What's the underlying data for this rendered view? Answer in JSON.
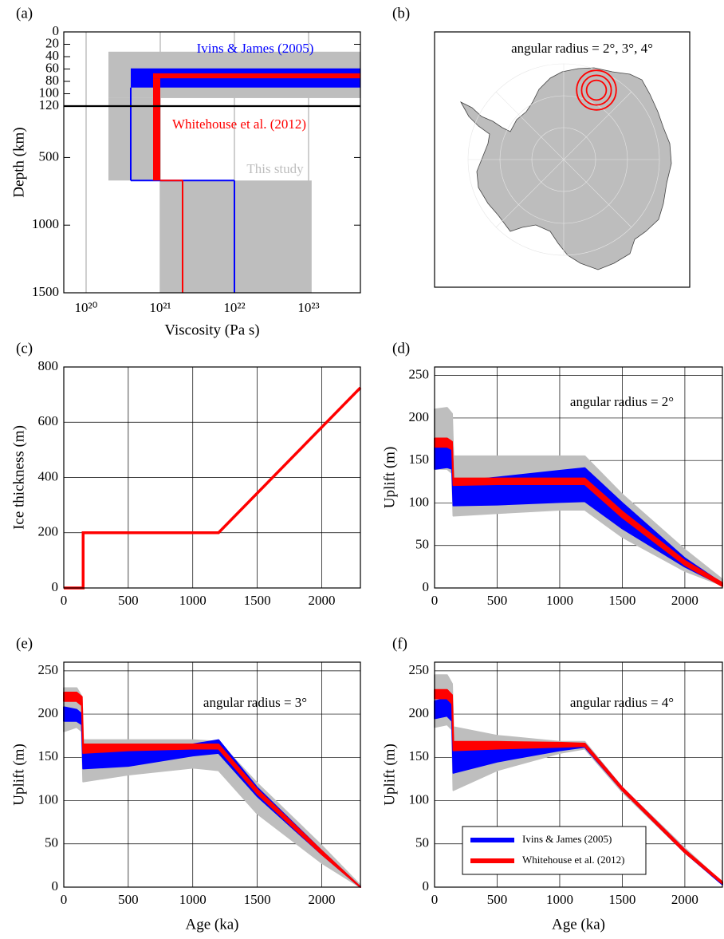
{
  "chart_data": [
    {
      "type": "profile",
      "label": "(a)",
      "xlabel": "Viscosity (Pa s)",
      "ylabel": "Depth (km)",
      "xscale": "log",
      "xlim": [
        5e+19,
        5e+23
      ],
      "xticks": [
        {
          "value": 1e+20,
          "label": "10²⁰"
        },
        {
          "value": 1e+21,
          "label": "10²¹"
        },
        {
          "value": 1e+22,
          "label": "10²²"
        },
        {
          "value": 1e+23,
          "label": "10²³"
        }
      ],
      "ylim": [
        0,
        1500
      ],
      "ybreak": 120,
      "yticks": [
        0,
        20,
        40,
        60,
        80,
        100,
        120,
        500,
        1000,
        1500
      ],
      "grid": "x",
      "transition_depth": 670,
      "series": [
        {
          "name": "This study",
          "color": "#bebebe",
          "lithosphere": [
            32,
            107
          ],
          "upper_mantle": [
            2e+20,
            1e+21
          ],
          "lower_mantle": [
            1e+21,
            1.1e+23
          ]
        },
        {
          "name": "Ivins & James (2005)",
          "color": "#0000ff",
          "lithosphere": [
            59,
            90
          ],
          "upper_mantle": 4e+20,
          "lower_mantle": 1e+22
        },
        {
          "name": "Whitehouse et al. (2012)",
          "color": "#ff0000",
          "lithosphere": [
            67,
            75
          ],
          "upper_mantle": [
            8e+20,
            1e+21
          ],
          "lower_mantle": 2e+21
        }
      ]
    },
    {
      "type": "map",
      "label": "(b)",
      "annotation": "angular radius = 2°, 3°, 4°",
      "circle_radii": [
        2,
        3,
        4
      ],
      "circle_color": "#ff0000"
    },
    {
      "type": "line",
      "label": "(c)",
      "ylabel": "Ice thickness (m)",
      "x": [
        0,
        150,
        150,
        1200,
        2300
      ],
      "values": [
        0,
        0,
        200,
        200,
        725
      ],
      "color": "#ff0000",
      "xlim": [
        0,
        2300
      ],
      "xticks": [
        0,
        500,
        1000,
        1500,
        2000
      ],
      "ylim": [
        0,
        800
      ],
      "yticks": [
        0,
        200,
        400,
        600,
        800
      ],
      "grid": true
    },
    {
      "type": "band",
      "label": "(d)",
      "ylabel": "Uplift (m)",
      "annotation": "angular radius = 2°",
      "x": [
        0,
        100,
        140,
        150,
        500,
        1000,
        1200,
        1500,
        2000,
        2300
      ],
      "xlim": [
        0,
        2300
      ],
      "xticks": [
        0,
        500,
        1000,
        1500,
        2000
      ],
      "ylim": [
        0,
        260
      ],
      "yticks": [
        0,
        50,
        100,
        150,
        200,
        250
      ],
      "grid": true,
      "series": [
        {
          "color": "#bebebe",
          "upper": [
            210,
            212,
            205,
            155,
            155,
            155,
            155,
            110,
            45,
            10
          ],
          "lower": [
            140,
            140,
            135,
            85,
            88,
            92,
            92,
            60,
            20,
            3
          ]
        },
        {
          "color": "#0000ff",
          "upper": [
            172,
            172,
            168,
            125,
            130,
            138,
            141,
            100,
            35,
            5
          ],
          "lower": [
            140,
            142,
            140,
            97,
            98,
            101,
            102,
            70,
            25,
            3
          ]
        },
        {
          "color": "#ff0000",
          "upper": [
            176,
            176,
            172,
            129,
            129,
            129,
            129,
            90,
            32,
            6
          ],
          "lower": [
            166,
            166,
            163,
            121,
            122,
            122,
            122,
            83,
            27,
            2
          ]
        }
      ]
    },
    {
      "type": "band",
      "label": "(e)",
      "ylabel": "Uplift (m)",
      "xlabel": "Age (ka)",
      "annotation": "angular radius = 3°",
      "x": [
        0,
        100,
        140,
        150,
        500,
        1000,
        1200,
        1500,
        2000,
        2300
      ],
      "xlim": [
        0,
        2300
      ],
      "xticks": [
        0,
        500,
        1000,
        1500,
        2000
      ],
      "ylim": [
        0,
        260
      ],
      "yticks": [
        0,
        50,
        100,
        150,
        200,
        250
      ],
      "grid": true,
      "series": [
        {
          "color": "#bebebe",
          "upper": [
            230,
            230,
            220,
            170,
            170,
            170,
            168,
            120,
            48,
            2
          ],
          "lower": [
            180,
            185,
            180,
            122,
            130,
            138,
            135,
            85,
            28,
            0
          ]
        },
        {
          "color": "#0000ff",
          "upper": [
            208,
            205,
            200,
            158,
            160,
            165,
            170,
            115,
            42,
            0
          ],
          "lower": [
            192,
            192,
            188,
            137,
            140,
            152,
            155,
            105,
            38,
            0
          ]
        },
        {
          "color": "#ff0000",
          "upper": [
            225,
            225,
            220,
            165,
            165,
            165,
            165,
            113,
            42,
            0
          ],
          "lower": [
            215,
            215,
            210,
            155,
            158,
            160,
            160,
            108,
            38,
            0
          ]
        }
      ]
    },
    {
      "type": "band",
      "label": "(f)",
      "ylabel": "Uplift (m)",
      "xlabel": "Age (ka)",
      "annotation": "angular radius = 4°",
      "legend": "lower left",
      "x": [
        0,
        100,
        140,
        150,
        500,
        1000,
        1200,
        1500,
        2000,
        2300
      ],
      "xlim": [
        0,
        2300
      ],
      "xticks": [
        0,
        500,
        1000,
        1500,
        2000
      ],
      "ylim": [
        0,
        260
      ],
      "yticks": [
        0,
        50,
        100,
        150,
        200,
        250
      ],
      "grid": true,
      "series": [
        {
          "color": "#bebebe",
          "upper": [
            245,
            245,
            235,
            185,
            175,
            168,
            168,
            115,
            45,
            5
          ],
          "lower": [
            185,
            188,
            182,
            112,
            135,
            155,
            160,
            110,
            40,
            3
          ]
        },
        {
          "name": "Ivins & James (2005)",
          "color": "#0000ff",
          "upper": [
            215,
            218,
            212,
            160,
            162,
            165,
            166,
            115,
            43,
            5
          ],
          "lower": [
            195,
            198,
            192,
            132,
            145,
            158,
            162,
            112,
            40,
            3
          ]
        },
        {
          "name": "Whitehouse et al. (2012)",
          "color": "#ff0000",
          "upper": [
            228,
            228,
            222,
            168,
            168,
            167,
            166,
            115,
            43,
            6
          ],
          "lower": [
            218,
            218,
            212,
            158,
            160,
            162,
            163,
            112,
            40,
            4
          ]
        }
      ]
    }
  ]
}
